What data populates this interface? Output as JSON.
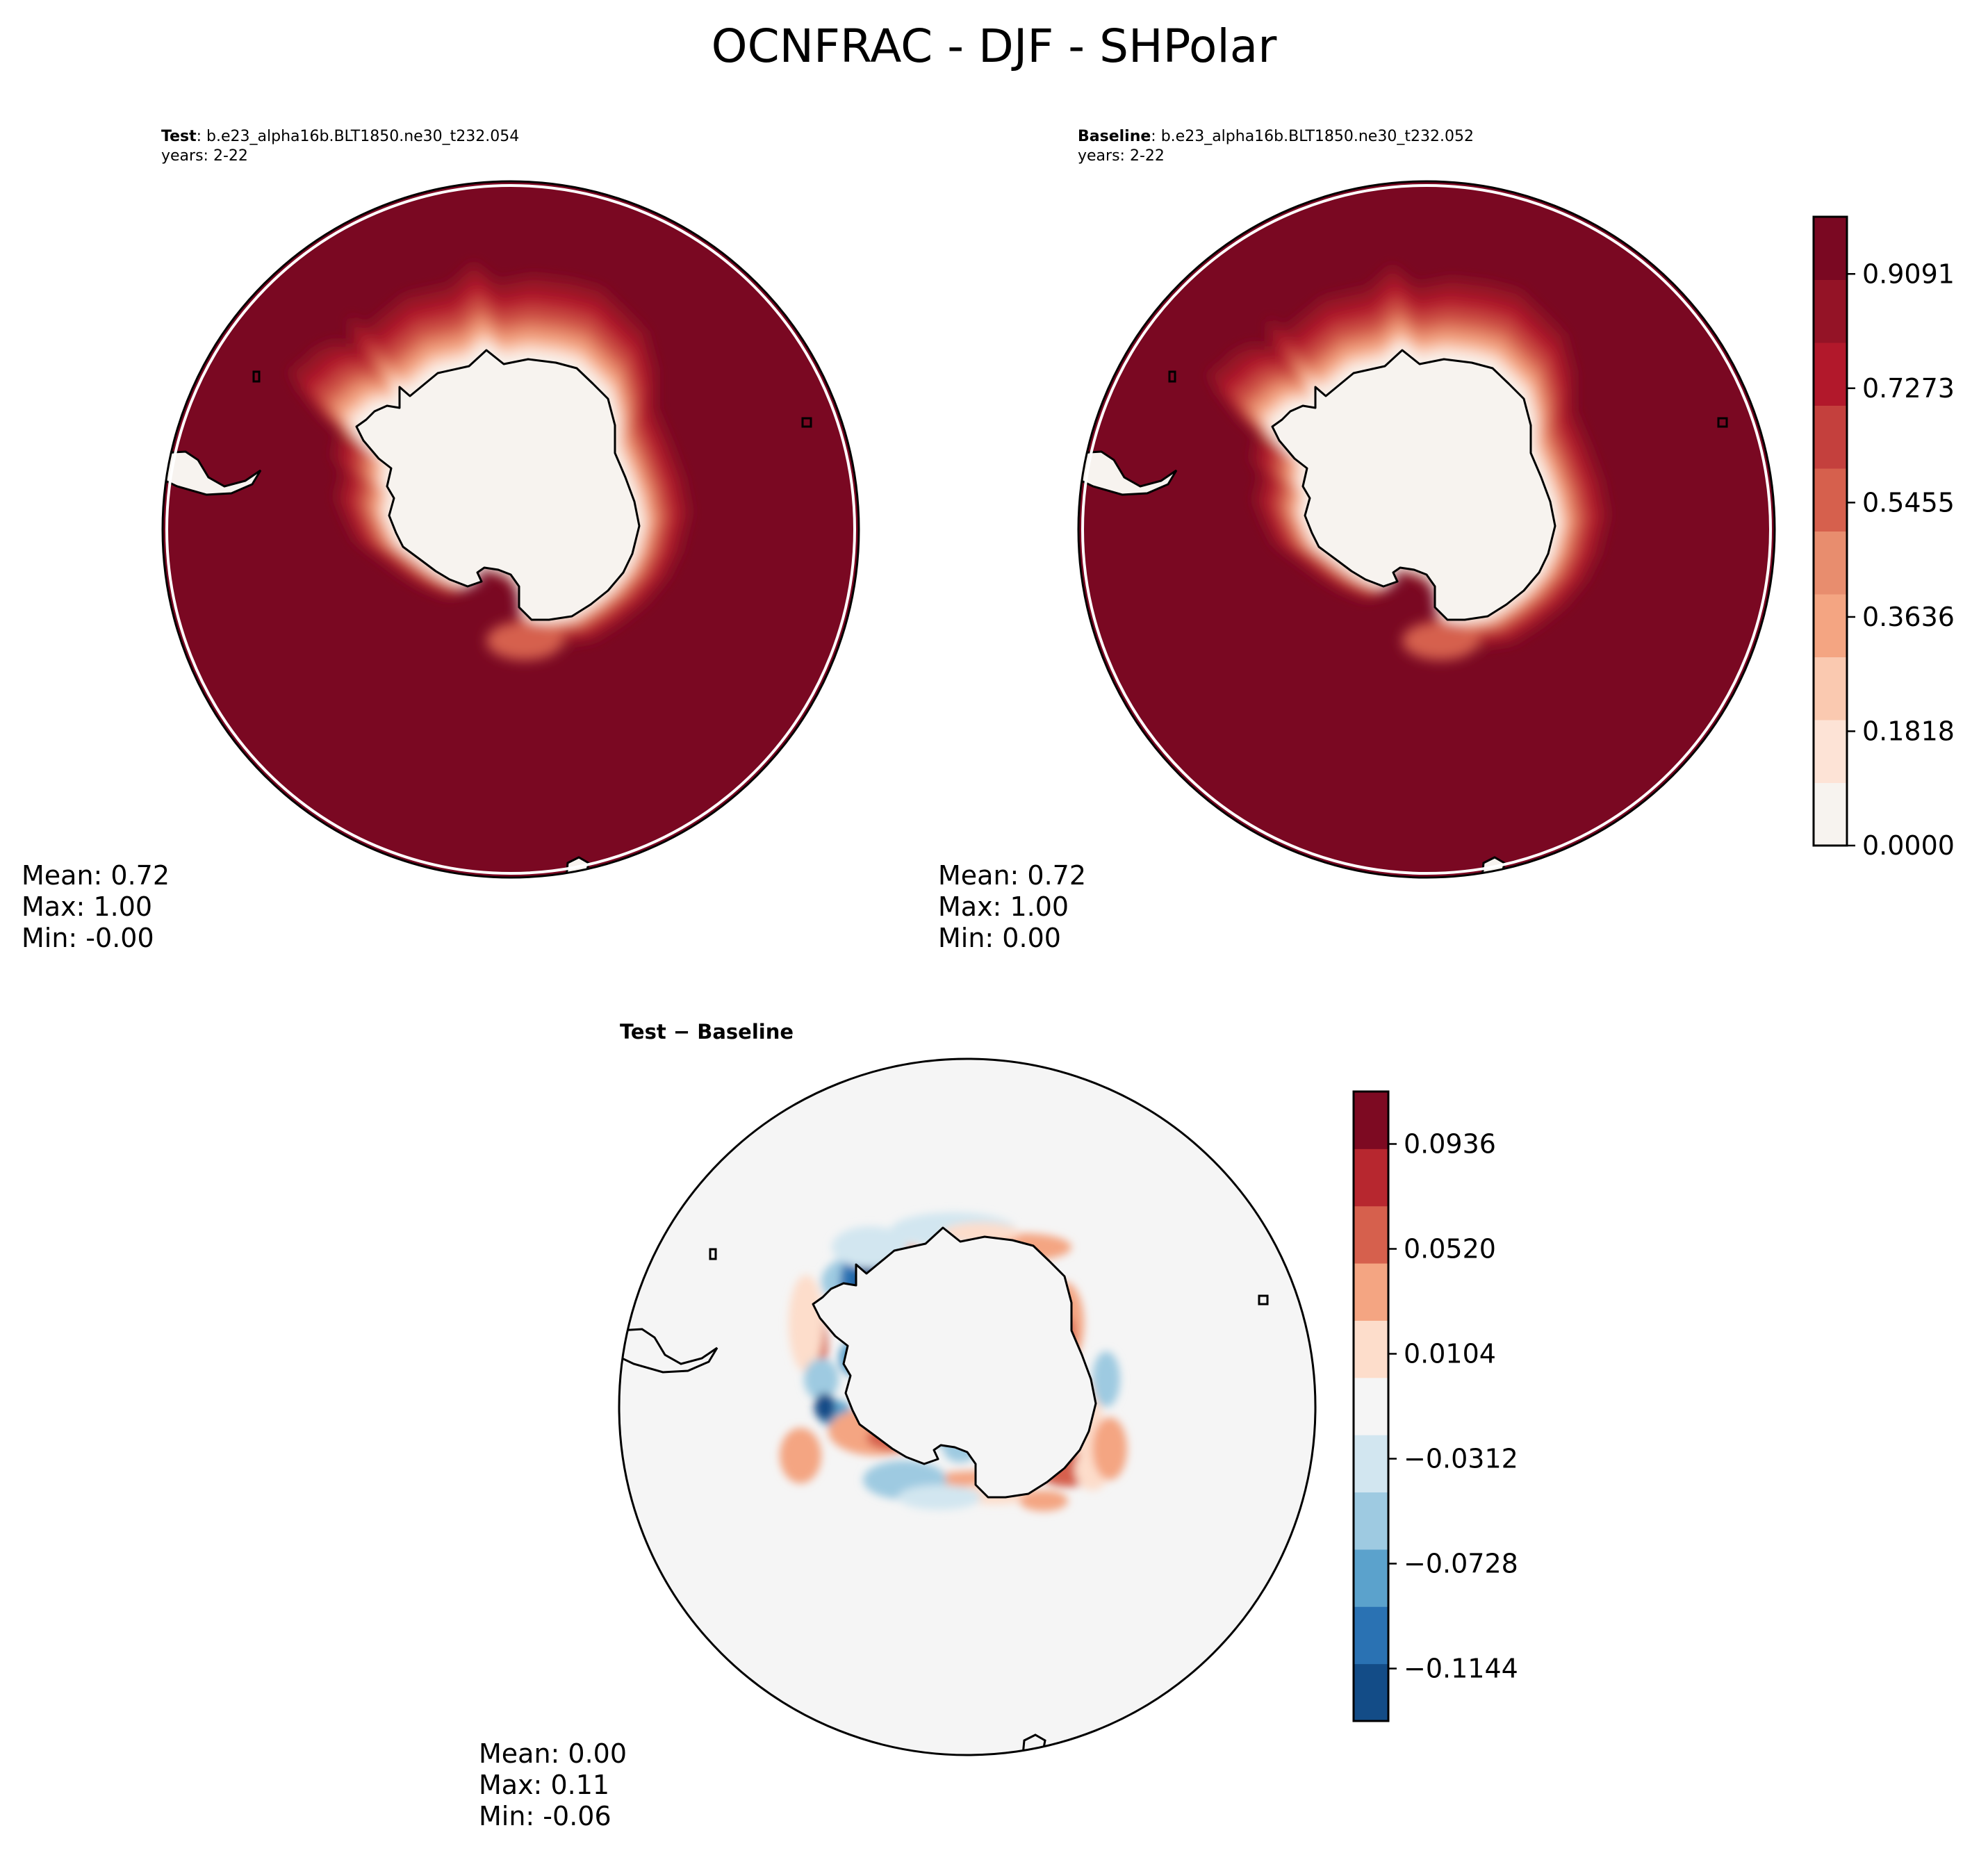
{
  "figure": {
    "suptitle": "OCNFRAC - DJF - SHPolar"
  },
  "colors": {
    "ocnfrac_levels": [
      "#f7f3ef",
      "#fde3d6",
      "#fac9b0",
      "#f4a582",
      "#e88d6e",
      "#d6604d",
      "#c4403d",
      "#b2182b",
      "#941326",
      "#7a0822"
    ],
    "diff_levels": [
      "#134c87",
      "#2a72b3",
      "#5ba2cc",
      "#9ecae1",
      "#d2e6f0",
      "#f5f5f5",
      "#fdddcb",
      "#f4a582",
      "#d6604d",
      "#b7272f",
      "#7d0a22"
    ],
    "land": "#f7f3ef",
    "diff_background": "#f5f5f5",
    "ocean_max": "#7a0822"
  },
  "chart_data": [
    {
      "type": "heatmap",
      "projection": "south-polar-stereographic",
      "panel": "test",
      "label_bold": "Test",
      "label_rest": ": b.e23_alpha16b.BLT1850.ne30_t232.054",
      "years": "years: 2-22",
      "stats": {
        "mean": "Mean:  0.72",
        "max": "Max:  1.00",
        "min": "Min: -0.00"
      },
      "value_range": [
        0.0,
        1.0
      ]
    },
    {
      "type": "heatmap",
      "projection": "south-polar-stereographic",
      "panel": "baseline",
      "label_bold": "Baseline",
      "label_rest": ": b.e23_alpha16b.BLT1850.ne30_t232.052",
      "years": "years: 2-22",
      "stats": {
        "mean": "Mean:  0.72",
        "max": "Max:  1.00",
        "min": "Min:  0.00"
      },
      "value_range": [
        0.0,
        1.0
      ],
      "colorbar": {
        "min": 0.0,
        "max": 1.0,
        "ticks": [
          0.0,
          0.1818,
          0.3636,
          0.5455,
          0.7273,
          0.9091
        ],
        "tick_labels": [
          "0.0000",
          "0.1818",
          "0.3636",
          "0.5455",
          "0.7273",
          "0.9091"
        ]
      }
    },
    {
      "type": "heatmap",
      "projection": "south-polar-stereographic",
      "panel": "difference",
      "title": "Test − Baseline",
      "stats": {
        "mean": "Mean:  0.00",
        "max": "Max:  0.11",
        "min": "Min: -0.06"
      },
      "colorbar": {
        "min": -0.1352,
        "max": 0.1144,
        "ticks": [
          -0.1144,
          -0.0728,
          -0.0312,
          0.0104,
          0.052,
          0.0936
        ],
        "tick_labels": [
          "−0.1144",
          "−0.0728",
          "−0.0312",
          "0.0104",
          "0.0520",
          "0.0936"
        ]
      }
    }
  ]
}
